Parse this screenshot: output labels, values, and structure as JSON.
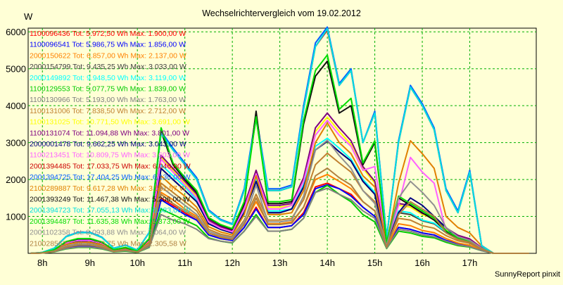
{
  "chart_data": {
    "type": "line",
    "title": "Wechselrichtervergleich vom 19.02.2012",
    "ylabel": "W",
    "xlabel": "",
    "footer": "SunnyReport pinxit",
    "ylim": [
      0,
      6100
    ],
    "xlim": [
      7.7,
      18.4
    ],
    "grid": true,
    "yticks": [
      1000,
      2000,
      3000,
      4000,
      5000,
      6000
    ],
    "ytick_labels": [
      "1000",
      "2000",
      "3000",
      "4000",
      "5000",
      "6000"
    ],
    "xticks": [
      8,
      9,
      10,
      11,
      12,
      13,
      14,
      15,
      16,
      17
    ],
    "xtick_labels": [
      "8h",
      "9h",
      "10h",
      "11h",
      "12h",
      "13h",
      "14h",
      "15h",
      "16h",
      "17h"
    ],
    "x": [
      7.75,
      8.0,
      8.25,
      8.5,
      8.75,
      9.0,
      9.25,
      9.5,
      9.75,
      10.0,
      10.25,
      10.5,
      10.75,
      11.0,
      11.25,
      11.5,
      11.75,
      12.0,
      12.25,
      12.5,
      12.75,
      13.0,
      13.25,
      13.5,
      13.75,
      14.0,
      14.25,
      14.5,
      14.75,
      15.0,
      15.25,
      15.5,
      15.75,
      16.0,
      16.25,
      16.5,
      16.75,
      17.0,
      17.25,
      17.5,
      17.75,
      18.0,
      18.25
    ],
    "series": [
      {
        "name": "1100096436",
        "label": "1100096436 Tot: 5.972,50 Wh Max: 1.900,00 W",
        "color": "#ff0000",
        "values": [
          0,
          10,
          50,
          150,
          200,
          200,
          150,
          50,
          80,
          30,
          200,
          1500,
          1300,
          1100,
          900,
          500,
          400,
          350,
          700,
          1250,
          700,
          700,
          750,
          1100,
          1800,
          1900,
          1750,
          1600,
          1250,
          1000,
          150,
          700,
          650,
          550,
          500,
          350,
          250,
          200,
          80,
          0,
          0,
          0,
          0
        ]
      },
      {
        "name": "1100096541",
        "label": "1100096541 Tot: 5.986,75 Wh Max: 1.856,00 W",
        "color": "#0000ff",
        "values": [
          0,
          10,
          50,
          150,
          200,
          200,
          150,
          50,
          80,
          30,
          200,
          1450,
          1250,
          1050,
          900,
          500,
          400,
          350,
          700,
          1200,
          700,
          700,
          750,
          1050,
          1750,
          1856,
          1750,
          1550,
          1250,
          1000,
          150,
          700,
          650,
          550,
          500,
          350,
          250,
          200,
          80,
          0,
          0,
          0,
          0
        ]
      },
      {
        "name": "2000150622",
        "label": "2000150622 Tot: 6.857,00 Wh Max: 2.137,00 W",
        "color": "#ff8000",
        "values": [
          0,
          10,
          60,
          180,
          230,
          230,
          170,
          60,
          90,
          35,
          230,
          1650,
          1450,
          1200,
          1000,
          550,
          450,
          400,
          800,
          1400,
          800,
          800,
          850,
          1250,
          2000,
          2137,
          1950,
          1750,
          1400,
          1150,
          170,
          800,
          750,
          620,
          560,
          400,
          280,
          220,
          90,
          0,
          0,
          0,
          0
        ]
      },
      {
        "name": "2000154799",
        "label": "2000154799 Tot: 9.435,25 Wh Max: 3.033,00 W",
        "color": "#404040",
        "values": [
          0,
          15,
          80,
          250,
          320,
          320,
          240,
          80,
          130,
          50,
          320,
          2300,
          2000,
          1700,
          1400,
          800,
          650,
          550,
          1100,
          1950,
          1100,
          1100,
          1200,
          1800,
          2800,
          3033,
          2750,
          2500,
          1950,
          1600,
          240,
          1100,
          1050,
          880,
          800,
          560,
          400,
          310,
          130,
          0,
          0,
          0,
          0
        ]
      },
      {
        "name": "2000149892",
        "label": "2000149892 Tot: 9.948,50 Wh Max: 3.119,00 W",
        "color": "#00ffff",
        "values": [
          0,
          15,
          80,
          260,
          330,
          330,
          250,
          80,
          130,
          50,
          330,
          2400,
          2100,
          1800,
          1450,
          800,
          650,
          550,
          1150,
          2000,
          1150,
          1150,
          1200,
          1850,
          2900,
          3119,
          2850,
          2550,
          2000,
          1650,
          250,
          1150,
          1100,
          900,
          820,
          580,
          400,
          320,
          130,
          0,
          0,
          0,
          0
        ]
      },
      {
        "name": "1100129553",
        "label": "1100129553 Tot: 5.077,75 Wh Max: 1.839,00 W",
        "color": "#00cc00",
        "values": [
          0,
          10,
          40,
          120,
          160,
          160,
          120,
          40,
          60,
          25,
          160,
          1200,
          1050,
          900,
          750,
          420,
          330,
          280,
          600,
          1050,
          600,
          600,
          650,
          950,
          1650,
          1839,
          1600,
          1400,
          1050,
          850,
          130,
          600,
          550,
          460,
          420,
          300,
          210,
          170,
          70,
          0,
          0,
          0,
          0
        ]
      },
      {
        "name": "1100130966",
        "label": "1100130966 Tot: 5.193,00 Wh Max: 1.763,00 W",
        "color": "#808080",
        "values": [
          0,
          10,
          45,
          130,
          170,
          170,
          130,
          45,
          70,
          28,
          170,
          1050,
          900,
          800,
          650,
          400,
          330,
          290,
          600,
          1000,
          600,
          600,
          650,
          950,
          1650,
          1763,
          1600,
          1450,
          1150,
          950,
          140,
          650,
          600,
          500,
          450,
          330,
          230,
          180,
          70,
          0,
          0,
          0,
          0
        ]
      },
      {
        "name": "1100131006",
        "label": "1100131006 Tot: 7.838,50 Wh Max: 2.712,00 W",
        "color": "#c08030",
        "values": [
          0,
          12,
          65,
          200,
          260,
          260,
          200,
          65,
          110,
          42,
          260,
          1900,
          1650,
          1400,
          1150,
          650,
          520,
          450,
          900,
          1600,
          900,
          900,
          950,
          1450,
          2400,
          2712,
          2450,
          2200,
          1700,
          1400,
          210,
          950,
          900,
          750,
          680,
          480,
          340,
          270,
          110,
          0,
          0,
          0,
          0
        ]
      },
      {
        "name": "1100131025",
        "label": "1100131025 Tot: 10.771,50 Wh Max: 3.691,00 W",
        "color": "#ffff00",
        "values": [
          0,
          18,
          90,
          280,
          350,
          350,
          270,
          90,
          140,
          55,
          350,
          2600,
          2250,
          1900,
          1550,
          880,
          700,
          600,
          1250,
          2200,
          1250,
          1250,
          1300,
          2000,
          3300,
          3691,
          3300,
          2950,
          2300,
          1900,
          280,
          1300,
          1250,
          1050,
          950,
          670,
          480,
          380,
          150,
          0,
          0,
          0,
          0
        ]
      },
      {
        "name": "1100131074",
        "label": "1100131074 Tot: 11.094,88 Wh Max: 3.801,00 W",
        "color": "#800080",
        "values": [
          0,
          18,
          90,
          280,
          360,
          360,
          280,
          90,
          145,
          57,
          360,
          2650,
          2300,
          1950,
          1600,
          900,
          720,
          620,
          1300,
          2250,
          1300,
          1300,
          1350,
          2050,
          3400,
          3801,
          3400,
          3050,
          2350,
          1950,
          290,
          1350,
          1300,
          1080,
          980,
          690,
          490,
          390,
          155,
          0,
          0,
          0,
          0
        ]
      },
      {
        "name": "2000001478",
        "label": "2000001478 Tot: 9.662,25 Wh Max: 3.043,00 W",
        "color": "#000080",
        "values": [
          0,
          15,
          80,
          250,
          320,
          320,
          240,
          80,
          130,
          50,
          320,
          2300,
          2000,
          1700,
          1400,
          800,
          650,
          550,
          1100,
          1950,
          1100,
          1100,
          1200,
          1800,
          2800,
          3043,
          2750,
          2500,
          1950,
          1600,
          240,
          1100,
          1500,
          1300,
          1000,
          700,
          400,
          300,
          130,
          0,
          0,
          0,
          0
        ]
      },
      {
        "name": "1100213451",
        "label": "1100213451 Tot: 10.809,75 Wh Max: 3.603,00 W",
        "color": "#ff60ff",
        "values": [
          0,
          18,
          90,
          280,
          350,
          350,
          270,
          90,
          140,
          55,
          350,
          2550,
          2200,
          1850,
          1500,
          850,
          680,
          580,
          1200,
          2150,
          1200,
          1200,
          1300,
          1950,
          3200,
          3603,
          3200,
          2900,
          2250,
          2350,
          270,
          1300,
          2600,
          2200,
          1900,
          600,
          450,
          350,
          140,
          0,
          0,
          0,
          0
        ]
      },
      {
        "name": "2001394485",
        "label": "2001394485 Tot: 17.033,75 Wh Max: 6.046,00 W",
        "color": "#cc0000",
        "values": [
          0,
          25,
          140,
          450,
          560,
          560,
          430,
          140,
          220,
          85,
          560,
          3250,
          2800,
          2400,
          2000,
          1150,
          900,
          780,
          1700,
          3650,
          1700,
          1700,
          1800,
          3900,
          5600,
          6046,
          4550,
          4950,
          3000,
          3800,
          420,
          3000,
          4500,
          4000,
          3350,
          1700,
          1100,
          2200,
          200,
          0,
          0,
          0,
          0
        ]
      },
      {
        "name": "2001394725",
        "label": "2001394725 Tot: 17.404,25 Wh Max: 6.130,00 W",
        "color": "#0060ff",
        "values": [
          0,
          25,
          140,
          460,
          570,
          570,
          440,
          140,
          225,
          87,
          570,
          3300,
          2850,
          2450,
          2050,
          1180,
          920,
          800,
          1750,
          3750,
          1750,
          1750,
          1850,
          4000,
          5700,
          6130,
          4600,
          5000,
          3000,
          3850,
          430,
          3050,
          4550,
          4050,
          3400,
          1750,
          1150,
          2250,
          210,
          0,
          0,
          0,
          0
        ]
      },
      {
        "name": "2100289887",
        "label": "2100289887 Tot: 9.617,28 Wh Max: 3.531,57 W",
        "color": "#e08000",
        "values": [
          0,
          15,
          75,
          240,
          300,
          300,
          230,
          75,
          120,
          48,
          300,
          2100,
          1800,
          1550,
          1250,
          720,
          580,
          500,
          1050,
          2100,
          1050,
          1050,
          1100,
          1700,
          3000,
          3532,
          3000,
          2700,
          2100,
          1800,
          250,
          1900,
          3050,
          2700,
          2300,
          1000,
          700,
          550,
          200,
          0,
          0,
          0,
          0
        ]
      },
      {
        "name": "2001393249",
        "label": "2001393249 Tot: 11.467,38 Wh Max: 5.206,00 W",
        "color": "#101010",
        "values": [
          0,
          18,
          100,
          310,
          390,
          390,
          300,
          100,
          155,
          60,
          390,
          3300,
          2400,
          2000,
          1650,
          950,
          760,
          650,
          1350,
          3850,
          1350,
          1350,
          1400,
          3500,
          4800,
          5206,
          3800,
          4000,
          2400,
          3000,
          300,
          1500,
          1300,
          1100,
          900,
          600,
          400,
          300,
          130,
          0,
          0,
          0,
          0
        ]
      },
      {
        "name": "2001394723",
        "label": "2001394723 Tot: 17.055,13 Wh Max: 6.083,00 W",
        "color": "#00e0e0",
        "values": [
          0,
          25,
          140,
          450,
          560,
          560,
          430,
          140,
          220,
          85,
          560,
          3250,
          2800,
          2400,
          2000,
          1150,
          900,
          780,
          1700,
          3650,
          1700,
          1700,
          1800,
          3900,
          5600,
          6083,
          4550,
          4950,
          3000,
          3800,
          420,
          3000,
          4500,
          4000,
          3350,
          1700,
          1100,
          2200,
          200,
          0,
          0,
          0,
          0
        ]
      },
      {
        "name": "2001394487",
        "label": "2001394487 Tot: 11.635,38 Wh Max: 5.373,00 W",
        "color": "#00dd00",
        "values": [
          0,
          18,
          100,
          320,
          400,
          400,
          310,
          100,
          160,
          62,
          400,
          3400,
          2450,
          2050,
          1700,
          970,
          780,
          670,
          1400,
          3700,
          1400,
          1400,
          1450,
          3600,
          4950,
          5373,
          3900,
          4200,
          2450,
          3050,
          310,
          1550,
          1350,
          1150,
          950,
          620,
          420,
          310,
          135,
          0,
          0,
          0,
          0
        ]
      },
      {
        "name": "2001102358",
        "label": "2001102358 Tot: 8.093,88 Wh Max: 3.064,00 W",
        "color": "#909090",
        "values": [
          0,
          12,
          65,
          200,
          250,
          250,
          190,
          65,
          100,
          40,
          250,
          1800,
          1550,
          1300,
          1050,
          600,
          480,
          420,
          850,
          1850,
          850,
          850,
          900,
          1550,
          2800,
          3064,
          2650,
          2300,
          1700,
          1350,
          200,
          1500,
          1950,
          1650,
          1300,
          700,
          450,
          350,
          130,
          0,
          0,
          0,
          0
        ]
      },
      {
        "name": "2100285622",
        "label": "2100285622 Tot: 6.650,75 Wh Max: 2.305,58 W",
        "color": "#b08040",
        "values": [
          0,
          10,
          55,
          170,
          220,
          220,
          170,
          55,
          90,
          35,
          220,
          1600,
          1350,
          1150,
          950,
          550,
          430,
          380,
          780,
          1500,
          780,
          780,
          820,
          1250,
          2100,
          2306,
          2050,
          1850,
          1400,
          1150,
          170,
          1050,
          1400,
          1200,
          1000,
          550,
          380,
          300,
          110,
          0,
          0,
          0,
          0
        ]
      }
    ]
  }
}
